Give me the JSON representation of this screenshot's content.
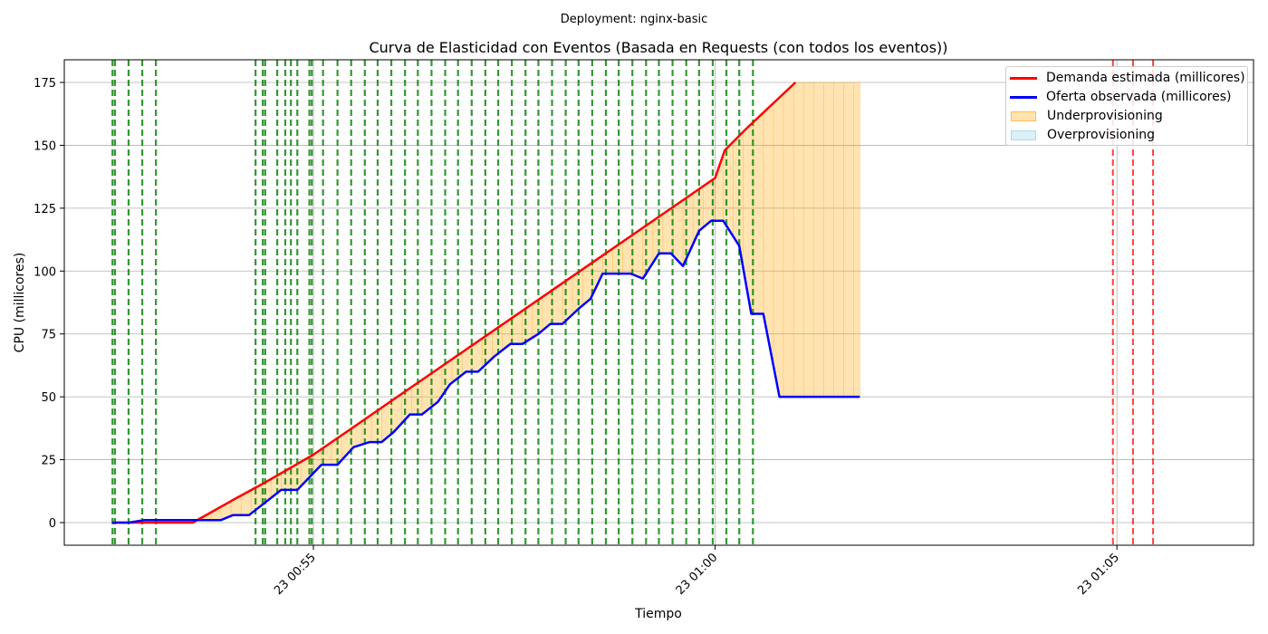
{
  "figure": {
    "suptitle": "Deployment: nginx-basic"
  },
  "chart_data": {
    "type": "line",
    "title": "Curva de Elasticidad con Eventos (Basada en Requests (con todos los eventos))",
    "xlabel": "Tiempo",
    "ylabel": "CPU (millicores)",
    "x_unit": "minutes after 00:52:30",
    "xlim": [
      -0.6,
      14.2
    ],
    "ylim": [
      -9,
      184
    ],
    "grid": true,
    "legend_position": "top-right",
    "x_ticks": [
      {
        "value": 2.5,
        "label": "23 00:55"
      },
      {
        "value": 7.5,
        "label": "23 01:00"
      },
      {
        "value": 12.5,
        "label": "23 01:05"
      }
    ],
    "y_ticks": [
      0,
      25,
      50,
      75,
      100,
      125,
      150,
      175
    ],
    "series": [
      {
        "name": "Demanda estimada (millicores)",
        "color": "#ff0000",
        "x": [
          0,
          1.0,
          1.5,
          1.9,
          2.5,
          3.0,
          3.5,
          4.0,
          4.5,
          5.0,
          5.5,
          6.0,
          6.5,
          7.0,
          7.5,
          7.62,
          7.9,
          8.5
        ],
        "y": [
          0,
          0,
          9,
          16,
          27,
          38,
          49,
          60,
          71,
          82,
          93,
          104,
          115,
          126,
          137,
          148,
          157,
          175
        ]
      },
      {
        "name": "Oferta observada (millicores)",
        "color": "#0000ff",
        "x": [
          0,
          0.2,
          0.4,
          0.6,
          0.8,
          1.0,
          1.2,
          1.35,
          1.5,
          1.7,
          1.9,
          2.1,
          2.3,
          2.45,
          2.6,
          2.8,
          3.0,
          3.2,
          3.35,
          3.5,
          3.7,
          3.85,
          4.05,
          4.2,
          4.4,
          4.55,
          4.75,
          4.95,
          5.1,
          5.3,
          5.45,
          5.6,
          5.8,
          5.95,
          6.1,
          6.3,
          6.45,
          6.6,
          6.8,
          6.95,
          7.1,
          7.3,
          7.45,
          7.6,
          7.8,
          7.95,
          8.1,
          8.3,
          8.45,
          8.6,
          8.8,
          8.95,
          9.1,
          9.3
        ],
        "y": [
          0,
          0,
          1,
          1,
          1,
          1,
          1,
          1,
          3,
          3,
          8,
          13,
          13,
          18,
          23,
          23,
          30,
          32,
          32,
          36,
          43,
          43,
          48,
          55,
          60,
          60,
          66,
          71,
          71,
          75,
          79,
          79,
          85,
          89,
          99,
          99,
          99,
          97,
          107,
          107,
          102,
          116,
          120,
          120,
          110,
          83,
          83,
          50,
          50,
          50,
          50,
          50,
          50,
          50
        ]
      }
    ],
    "demand_x": [
      0,
      1.0,
      2.5,
      3.5,
      4.5,
      5.5,
      6.5,
      7.6,
      7.72,
      8.0,
      8.3,
      8.6,
      8.95,
      9.3
    ],
    "demand_y": [
      0,
      0,
      27,
      49,
      71,
      93,
      115,
      142,
      153,
      157,
      163,
      168,
      173,
      175
    ],
    "supply_x": [
      0,
      0.2,
      0.4,
      0.6,
      0.8,
      1.0,
      1.2,
      1.35,
      1.5,
      1.7,
      1.9,
      2.1,
      2.3,
      2.45,
      2.6,
      2.8,
      3.0,
      3.2,
      3.35,
      3.5,
      3.7,
      3.85,
      4.05,
      4.2,
      4.4,
      4.55,
      4.75,
      4.95,
      5.1,
      5.3,
      5.45,
      5.6,
      5.8,
      5.95,
      6.1,
      6.3,
      6.45,
      6.6,
      6.8,
      6.95,
      7.1,
      7.3,
      7.45,
      7.6,
      7.8,
      7.95,
      8.1,
      8.3,
      8.45,
      8.6,
      8.8,
      8.95,
      9.1,
      9.3
    ],
    "fill_series": [
      {
        "name": "Underprovisioning",
        "color": "#ffa500",
        "opacity": 0.3
      },
      {
        "name": "Overprovisioning",
        "color": "#87ceeb",
        "opacity": 0.3
      }
    ],
    "events": {
      "scale_up_color": "#008000",
      "scale_down_color": "#ff0000",
      "scale_up_x": [
        0.0,
        0.03,
        0.2,
        0.37,
        0.54,
        1.78,
        1.87,
        1.9,
        2.05,
        2.15,
        2.22,
        2.3,
        2.45,
        2.48,
        2.62,
        2.8,
        2.97,
        3.14,
        3.3,
        3.47,
        3.64,
        3.8,
        3.97,
        4.14,
        4.3,
        4.47,
        4.64,
        4.8,
        4.97,
        5.14,
        5.3,
        5.47,
        5.64,
        5.8,
        5.97,
        6.14,
        6.3,
        6.47,
        6.64,
        6.8,
        6.97,
        7.14,
        7.3,
        7.47,
        7.64,
        7.8,
        7.97
      ],
      "scale_down_x": [
        12.45,
        12.7,
        12.95
      ]
    }
  }
}
